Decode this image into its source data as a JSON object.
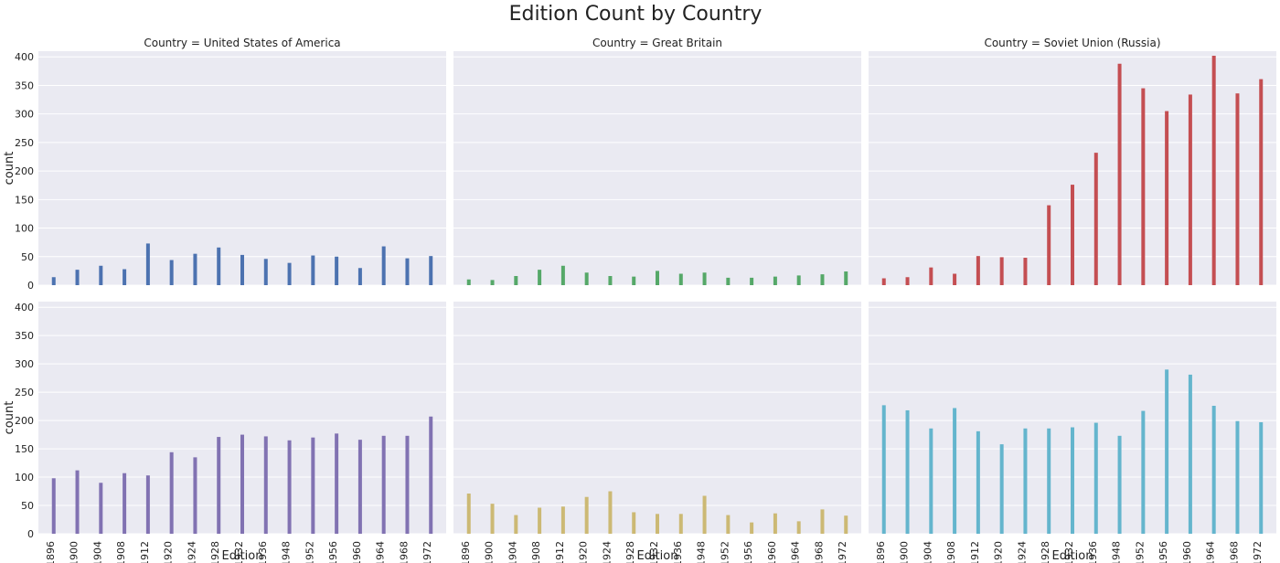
{
  "figure": {
    "suptitle": "Edition Count by Country",
    "colors": {
      "panel_background": "#eaeaf2",
      "grid": "#ffffff"
    }
  },
  "chart_data": [
    {
      "type": "bar",
      "title": "Country = United States of America",
      "xlabel": "",
      "ylabel": "count",
      "color": "#4c72b0",
      "x": [
        1896,
        1900,
        1904,
        1908,
        1912,
        1920,
        1924,
        1928,
        1932,
        1936,
        1948,
        1952,
        1956,
        1960,
        1964,
        1968,
        1972
      ],
      "values": [
        14,
        27,
        34,
        28,
        73,
        44,
        55,
        66,
        53,
        46,
        39,
        52,
        50,
        30,
        68,
        47,
        51
      ],
      "ylim": [
        0,
        410
      ],
      "yticks": [
        0,
        50,
        100,
        150,
        200,
        250,
        300,
        350,
        400
      ],
      "grid": true
    },
    {
      "type": "bar",
      "title": "Country = Great Britain",
      "xlabel": "",
      "ylabel": "",
      "color": "#55a868",
      "x": [
        1896,
        1900,
        1904,
        1908,
        1912,
        1920,
        1924,
        1928,
        1932,
        1936,
        1948,
        1952,
        1956,
        1960,
        1964,
        1968,
        1972
      ],
      "values": [
        10,
        9,
        16,
        27,
        34,
        22,
        16,
        15,
        25,
        20,
        22,
        13,
        13,
        15,
        17,
        19,
        24
      ],
      "ylim": [
        0,
        410
      ],
      "yticks": [
        0,
        50,
        100,
        150,
        200,
        250,
        300,
        350,
        400
      ],
      "grid": true
    },
    {
      "type": "bar",
      "title": "Country = Soviet Union (Russia)",
      "xlabel": "",
      "ylabel": "",
      "color": "#c44e52",
      "x": [
        1896,
        1900,
        1904,
        1908,
        1912,
        1920,
        1924,
        1928,
        1932,
        1936,
        1948,
        1952,
        1956,
        1960,
        1964,
        1968,
        1972
      ],
      "values": [
        12,
        14,
        31,
        20,
        51,
        49,
        48,
        140,
        176,
        232,
        388,
        345,
        305,
        334,
        402,
        336,
        361
      ],
      "ylim": [
        0,
        410
      ],
      "yticks": [
        0,
        50,
        100,
        150,
        200,
        250,
        300,
        350,
        400
      ],
      "grid": true
    },
    {
      "type": "bar",
      "title": "",
      "xlabel": "Edition",
      "ylabel": "count",
      "color": "#8172b2",
      "x": [
        1896,
        1900,
        1904,
        1908,
        1912,
        1920,
        1924,
        1928,
        1932,
        1936,
        1948,
        1952,
        1956,
        1960,
        1964,
        1968,
        1972
      ],
      "values": [
        98,
        112,
        90,
        107,
        103,
        144,
        135,
        171,
        175,
        172,
        165,
        170,
        177,
        166,
        173,
        173,
        207
      ],
      "ylim": [
        0,
        410
      ],
      "yticks": [
        0,
        50,
        100,
        150,
        200,
        250,
        300,
        350,
        400
      ],
      "grid": true
    },
    {
      "type": "bar",
      "title": "",
      "xlabel": "Edition",
      "ylabel": "",
      "color": "#ccb974",
      "x": [
        1896,
        1900,
        1904,
        1908,
        1912,
        1920,
        1924,
        1928,
        1932,
        1936,
        1948,
        1952,
        1956,
        1960,
        1964,
        1968,
        1972
      ],
      "values": [
        71,
        53,
        33,
        46,
        48,
        65,
        75,
        38,
        35,
        35,
        67,
        33,
        20,
        36,
        22,
        43,
        32
      ],
      "ylim": [
        0,
        410
      ],
      "yticks": [
        0,
        50,
        100,
        150,
        200,
        250,
        300,
        350,
        400
      ],
      "grid": true
    },
    {
      "type": "bar",
      "title": "",
      "xlabel": "Edition",
      "ylabel": "",
      "color": "#64b5cd",
      "x": [
        1896,
        1900,
        1904,
        1908,
        1912,
        1920,
        1924,
        1928,
        1932,
        1936,
        1948,
        1952,
        1956,
        1960,
        1964,
        1968,
        1972
      ],
      "values": [
        227,
        218,
        186,
        222,
        181,
        158,
        186,
        186,
        188,
        196,
        173,
        217,
        290,
        281,
        226,
        199,
        197
      ],
      "ylim": [
        0,
        410
      ],
      "yticks": [
        0,
        50,
        100,
        150,
        200,
        250,
        300,
        350,
        400
      ],
      "grid": true
    }
  ]
}
